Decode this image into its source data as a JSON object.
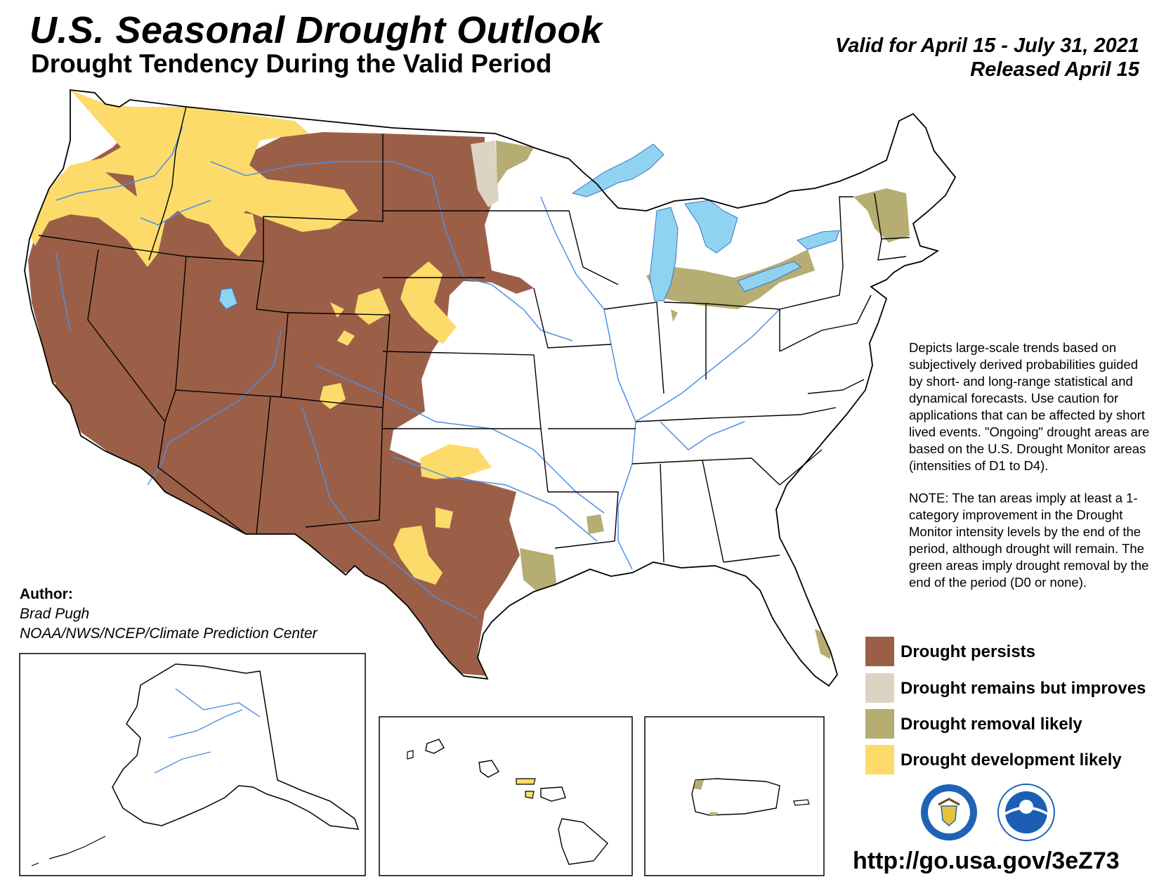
{
  "header": {
    "title": "U.S. Seasonal Drought Outlook",
    "subtitle": "Drought Tendency During the Valid Period",
    "valid_line": "Valid for April 15 - July 31, 2021",
    "released_line": "Released April 15"
  },
  "description": {
    "paragraph1": "Depicts large-scale trends based on subjectively derived probabilities guided by short- and long-range statistical and dynamical forecasts. Use caution for applications that can be affected by short lived events. \"Ongoing\" drought areas are based on the U.S. Drought Monitor areas (intensities of D1 to D4).",
    "paragraph2": "NOTE: The tan areas imply at least a 1-category improvement in the Drought Monitor intensity levels by the end of the period, although drought will remain. The green areas imply drought removal by the end of the period (D0 or none)."
  },
  "legend": {
    "items": [
      {
        "label": "Drought persists",
        "color": "#9b5f48"
      },
      {
        "label": "Drought remains but improves",
        "color": "#ddd3c2"
      },
      {
        "label": "Drought removal likely",
        "color": "#b5ad72"
      },
      {
        "label": "Drought development likely",
        "color": "#fddb6b"
      }
    ]
  },
  "author": {
    "label": "Author:",
    "name": "Brad Pugh",
    "org": "NOAA/NWS/NCEP/Climate Prediction Center"
  },
  "footer": {
    "url": "http://go.usa.gov/3eZ73"
  },
  "colors": {
    "persists": "#9b5f48",
    "improves": "#ddd3c2",
    "removal": "#b5ad72",
    "development": "#fddb6b",
    "water": "#8fd3f0",
    "rivers": "#4d8fe6",
    "borders": "#000000"
  },
  "icons": [
    "department-of-commerce-seal",
    "noaa-logo"
  ]
}
